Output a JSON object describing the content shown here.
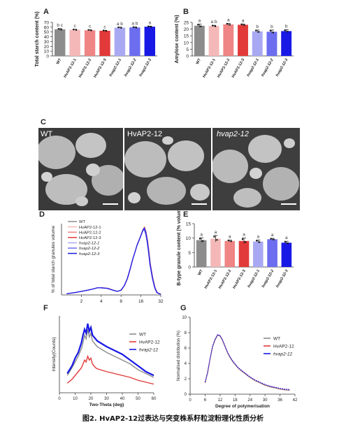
{
  "caption": "图2. HvAP2-12过表达与突变株系籽粒淀粉理化性质分析",
  "panels": {
    "A": "A",
    "B": "B",
    "C": "C",
    "D": "D",
    "E": "E",
    "F": "F",
    "G": "G"
  },
  "genotypes": [
    "WT",
    "HvAP2-12-1",
    "HvAP2-12-2",
    "HvAP2-12-3",
    "hvap2-12-1",
    "hvap2-12-2",
    "hvap2-12-3"
  ],
  "colors": {
    "wt": "#8c8c8c",
    "oe1": "#f4b8b8",
    "oe2": "#ef8585",
    "oe3": "#e23a3a",
    "mu1": "#a9a9f3",
    "mu2": "#6d6df0",
    "mu3": "#1919e6"
  },
  "sem_labels": [
    "WT",
    "HvAP2-12",
    "hvap2-12"
  ],
  "chart_data": [
    {
      "id": "A",
      "type": "bar",
      "ylabel": "Total starch content (%)",
      "ylim": [
        0,
        70
      ],
      "yticks": [
        0,
        10,
        20,
        30,
        40,
        50,
        60,
        70
      ],
      "categories": [
        "WT",
        "HvAP2-12-1",
        "HvAP2-12-2",
        "HvAP2-12-3",
        "hvap2-12-1",
        "hvap2-12-2",
        "hvap2-12-3"
      ],
      "values": [
        55.5,
        54.5,
        53.5,
        52.5,
        59,
        59.5,
        61
      ],
      "errors": [
        1.5,
        1,
        1,
        1,
        1,
        1,
        1
      ],
      "letters": [
        "b c",
        "c",
        "c",
        "c",
        "a b",
        "a b",
        "a"
      ]
    },
    {
      "id": "B",
      "type": "bar",
      "ylabel": "Amylose content (%)",
      "ylim": [
        0,
        25
      ],
      "yticks": [
        0,
        5,
        10,
        15,
        20,
        25
      ],
      "categories": [
        "WT",
        "HvAP2-12-1",
        "HvAP2-12-2",
        "HvAP2-12-3",
        "hvap2-12-1",
        "hvap2-12-2",
        "hvap2-12-3"
      ],
      "values": [
        22.5,
        22.3,
        23.5,
        23.2,
        18.3,
        18.0,
        18.5
      ],
      "errors": [
        1.2,
        0.5,
        0.7,
        0.6,
        1,
        1.3,
        1
      ],
      "letters": [
        "a",
        "a b",
        "a",
        "a",
        "b",
        "b",
        "b"
      ]
    },
    {
      "id": "D",
      "type": "line",
      "ylabel": "% of total starch granules volume",
      "xscale": "log2",
      "xticks": [
        2,
        4,
        8,
        16,
        32
      ],
      "legend": [
        "WT",
        "HvAP2-12-1",
        "HvAP2-12-2",
        "HvAP2-12-3",
        "hvap2-12-1",
        "hvap2-12-2",
        "hvap2-12-3"
      ],
      "x": [
        1.2,
        1.6,
        2,
        2.5,
        3,
        3.5,
        4,
        5,
        6,
        7,
        8,
        9,
        10,
        11,
        12,
        13,
        14,
        15,
        16,
        17,
        18,
        19,
        20,
        21,
        22,
        24,
        26,
        28,
        32
      ],
      "y": [
        0.1,
        0.2,
        0.3,
        0.4,
        0.5,
        0.6,
        0.6,
        0.55,
        0.4,
        0.3,
        0.4,
        0.8,
        1.4,
        2.2,
        3.0,
        3.6,
        4.2,
        4.6,
        5.0,
        5.4,
        5.6,
        5.2,
        4.5,
        3.6,
        2.6,
        1.4,
        0.6,
        0.2,
        0.05
      ]
    },
    {
      "id": "E",
      "type": "bar",
      "ylabel": "B-type granule content (% volume)",
      "ylim": [
        0,
        15
      ],
      "yticks": [
        0,
        5,
        10,
        15
      ],
      "categories": [
        "WT",
        "HvAP2-12-1",
        "HvAP2-12-2",
        "HvAP2-12-3",
        "hvap2-12-1",
        "hvap2-12-2",
        "hvap2-12-3"
      ],
      "values": [
        9.3,
        9.8,
        9.0,
        9.0,
        8.8,
        9.6,
        8.4
      ],
      "errors": [
        0.8,
        1.1,
        0.3,
        1.0,
        0.5,
        0.3,
        0.5
      ],
      "letters": [
        "a",
        "a",
        "a",
        "a",
        "a",
        "a",
        "a"
      ]
    },
    {
      "id": "F",
      "type": "line",
      "xlabel": "Two-Theta (deg)",
      "ylabel": "Intensity(Counts)",
      "xlim": [
        0,
        60
      ],
      "xticks": [
        0,
        10,
        20,
        30,
        40,
        50,
        60
      ],
      "legend": [
        "WT",
        "HvAP2-12",
        "hvap2-12"
      ],
      "x": [
        5,
        8,
        10,
        12,
        14,
        15,
        16,
        17,
        18,
        19,
        20,
        21,
        22,
        23,
        24,
        26,
        28,
        30,
        35,
        40,
        45,
        50,
        55,
        60
      ],
      "series": [
        {
          "name": "WT",
          "values": [
            18,
            26,
            32,
            38,
            46,
            52,
            60,
            56,
            66,
            58,
            62,
            54,
            52,
            50,
            48,
            46,
            44,
            42,
            38,
            34,
            30,
            24,
            20,
            16
          ]
        },
        {
          "name": "HvAP2-12",
          "values": [
            10,
            14,
            18,
            22,
            26,
            30,
            34,
            32,
            38,
            34,
            36,
            30,
            28,
            26,
            25,
            24,
            23,
            22,
            20,
            18,
            16,
            13,
            11,
            9
          ]
        },
        {
          "name": "hvap2-12",
          "values": [
            20,
            28,
            36,
            42,
            52,
            60,
            66,
            62,
            72,
            64,
            68,
            60,
            58,
            56,
            54,
            52,
            50,
            48,
            44,
            40,
            34,
            28,
            22,
            18
          ]
        }
      ]
    },
    {
      "id": "G",
      "type": "line",
      "xlabel": "Degree of polymerisation",
      "ylabel": "Normalised distribution (%)",
      "xlim": [
        0,
        42
      ],
      "ylim": [
        0,
        10
      ],
      "xticks": [
        0,
        6,
        12,
        18,
        24,
        30,
        36,
        42
      ],
      "yticks": [
        0,
        2,
        4,
        6,
        8,
        10
      ],
      "legend": [
        "WT",
        "HvAP2-12",
        "hvap2-12"
      ],
      "x": [
        6,
        7,
        8,
        9,
        10,
        11,
        12,
        13,
        14,
        15,
        16,
        17,
        18,
        19,
        20,
        22,
        24,
        26,
        28,
        30,
        32,
        34,
        36,
        38,
        40
      ],
      "y": [
        1.5,
        2.8,
        4.6,
        6.2,
        7.1,
        7.7,
        7.6,
        7.0,
        6.2,
        5.4,
        4.8,
        4.3,
        3.9,
        3.5,
        3.2,
        2.7,
        2.2,
        1.8,
        1.5,
        1.2,
        1.0,
        0.85,
        0.7,
        0.6,
        0.55
      ]
    }
  ]
}
